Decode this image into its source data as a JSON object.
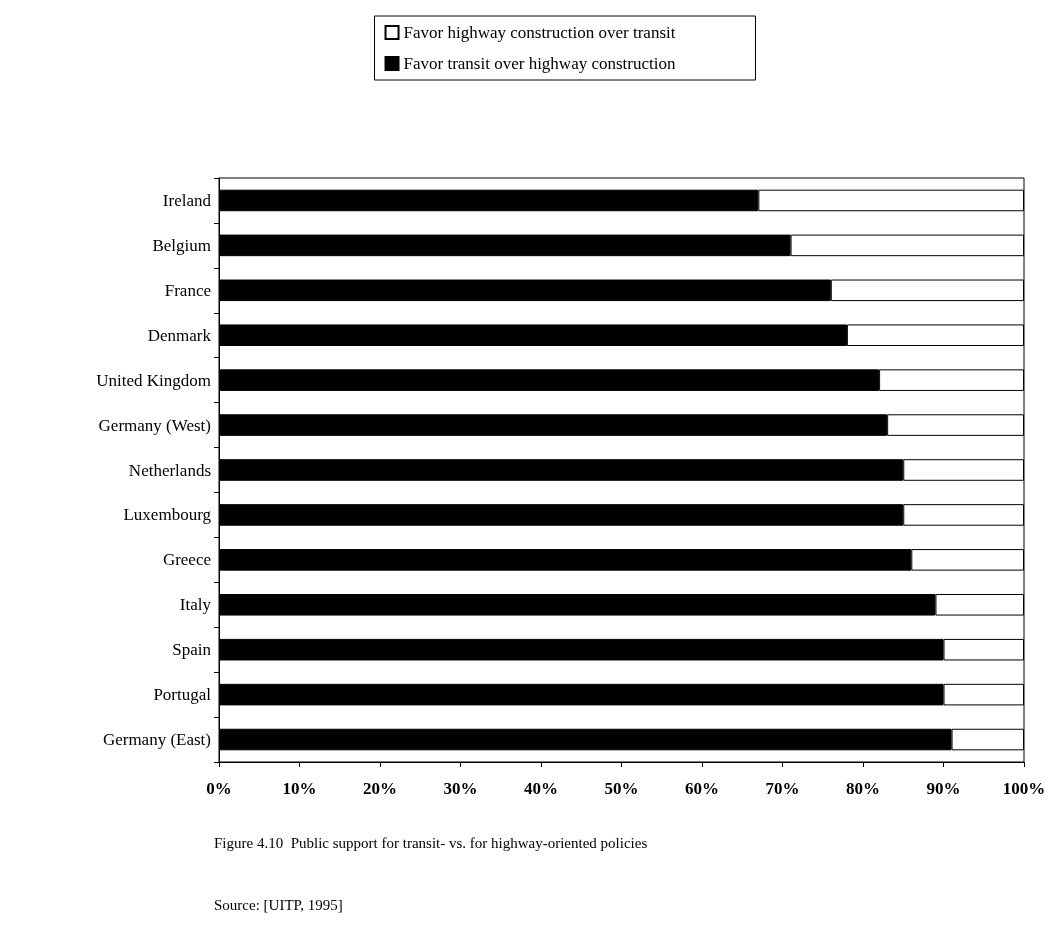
{
  "chart_data": {
    "type": "bar",
    "orientation": "horizontal",
    "stacked": true,
    "categories": [
      "Ireland",
      "Belgium",
      "France",
      "Denmark",
      "United Kingdom",
      "Germany (West)",
      "Netherlands",
      "Luxembourg",
      "Greece",
      "Italy",
      "Spain",
      "Portugal",
      "Germany (East)"
    ],
    "series": [
      {
        "name": "Favor transit over highway construction",
        "color": "#000000",
        "values": [
          67,
          71,
          76,
          78,
          82,
          83,
          85,
          85,
          86,
          89,
          90,
          90,
          91
        ]
      },
      {
        "name": "Favor highway construction over transit",
        "color": "#ffffff",
        "values": [
          33,
          29,
          24,
          22,
          18,
          17,
          15,
          15,
          14,
          11,
          10,
          10,
          9
        ]
      }
    ],
    "xlim": [
      0,
      100
    ],
    "xticks": [
      {
        "value": 0,
        "label": "0%"
      },
      {
        "value": 10,
        "label": "10%"
      },
      {
        "value": 20,
        "label": "20%"
      },
      {
        "value": 30,
        "label": "30%"
      },
      {
        "value": 40,
        "label": "40%"
      },
      {
        "value": 50,
        "label": "50%"
      },
      {
        "value": 60,
        "label": "60%"
      },
      {
        "value": 70,
        "label": "70%"
      },
      {
        "value": 80,
        "label": "80%"
      },
      {
        "value": 90,
        "label": "90%"
      },
      {
        "value": 100,
        "label": "100%"
      }
    ],
    "grid": false,
    "legend": "top",
    "annotations": [
      "Figure 4.10  Public support for transit- vs. for highway-oriented policies",
      "Source: [UITP, 1995]"
    ]
  }
}
